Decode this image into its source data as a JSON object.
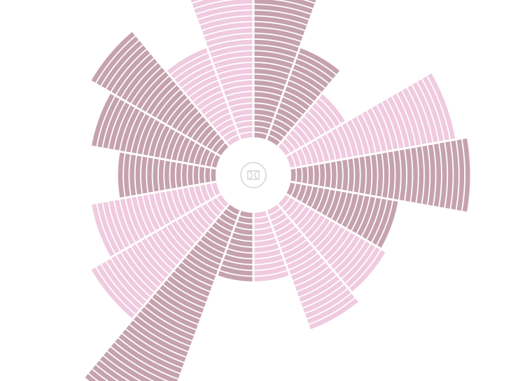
{
  "chart_data": {
    "type": "radial-bar",
    "start_angle_deg": 0,
    "direction": "clockwise",
    "sector_count": 18,
    "values": [
      27,
      17,
      12,
      29,
      31,
      19,
      20,
      22,
      12,
      12,
      39,
      26,
      22,
      17,
      22,
      26,
      17,
      26
    ],
    "series_colors": [
      "dark",
      "dark",
      "pink",
      "pink",
      "dark",
      "dark",
      "pink",
      "pink",
      "pink",
      "dark",
      "dark",
      "pink",
      "pink",
      "dark",
      "dark",
      "dark",
      "pink",
      "pink"
    ],
    "palette": {
      "dark": "#c5a2ae",
      "pink": "#f0cbe0"
    },
    "center_icon": "logo-icon",
    "grid": false,
    "legend": "none"
  }
}
